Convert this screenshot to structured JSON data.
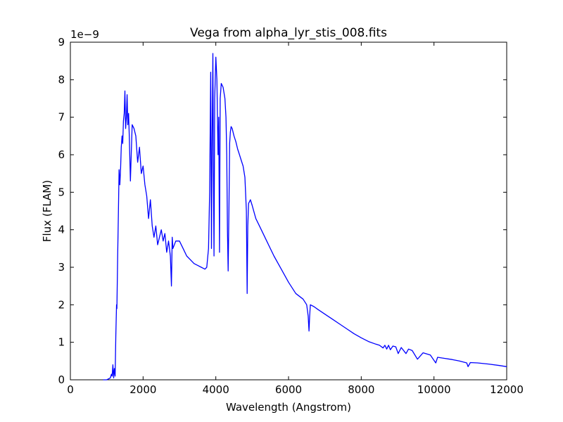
{
  "chart_data": {
    "type": "line",
    "title": "Vega from alpha_lyr_stis_008.fits",
    "xlabel": "Wavelength (Angstrom)",
    "ylabel": "Flux (FLAM)",
    "y_offset_label": "1e−9",
    "xlim": [
      0,
      12000
    ],
    "ylim": [
      0,
      9
    ],
    "x_ticks": [
      0,
      2000,
      4000,
      6000,
      8000,
      10000,
      12000
    ],
    "x_tick_labels": [
      "0",
      "2000",
      "4000",
      "6000",
      "8000",
      "10000",
      "12000"
    ],
    "y_ticks": [
      0,
      1,
      2,
      3,
      4,
      5,
      6,
      7,
      8,
      9
    ],
    "y_tick_labels": [
      "0",
      "1",
      "2",
      "3",
      "4",
      "5",
      "6",
      "7",
      "8",
      "9"
    ],
    "grid": false,
    "line_color": "#0000ff",
    "series": [
      {
        "x": [
          900,
          1000,
          1100,
          1130,
          1150,
          1170,
          1190,
          1210,
          1230,
          1250,
          1270,
          1280,
          1300,
          1320,
          1340,
          1360,
          1380,
          1400,
          1420,
          1440,
          1460,
          1480,
          1500,
          1520,
          1540,
          1560,
          1580,
          1600,
          1620,
          1650,
          1700,
          1750,
          1800,
          1850,
          1900,
          1950,
          2000,
          2050,
          2100,
          2150,
          2200,
          2250,
          2300,
          2350,
          2400,
          2450,
          2500,
          2550,
          2600,
          2650,
          2700,
          2750,
          2780,
          2800,
          2820,
          2900,
          3000,
          3100,
          3200,
          3300,
          3400,
          3500,
          3600,
          3700,
          3750,
          3800,
          3830,
          3860,
          3880,
          3900,
          3920,
          3935,
          3950,
          3970,
          4000,
          4030,
          4060,
          4080,
          4101,
          4120,
          4150,
          4200,
          4250,
          4280,
          4300,
          4320,
          4340,
          4360,
          4380,
          4400,
          4420,
          4450,
          4500,
          4550,
          4600,
          4650,
          4700,
          4750,
          4800,
          4840,
          4861,
          4880,
          4900,
          4950,
          5000,
          5100,
          5200,
          5400,
          5600,
          5800,
          6000,
          6200,
          6400,
          6500,
          6540,
          6563,
          6580,
          6600,
          6700,
          6800,
          7000,
          7200,
          7400,
          7600,
          7800,
          8000,
          8200,
          8400,
          8500,
          8600,
          8650,
          8700,
          8750,
          8800,
          8870,
          8950,
          9015,
          9100,
          9230,
          9300,
          9400,
          9546,
          9700,
          9900,
          10049,
          10100,
          10300,
          10500,
          10700,
          10900,
          10938,
          11000,
          11200,
          11500,
          11800,
          12000
        ],
        "y": [
          0.0,
          0.0,
          0.05,
          0.15,
          0.1,
          0.4,
          0.05,
          0.3,
          0.1,
          1.2,
          2.0,
          1.9,
          3.3,
          4.4,
          5.6,
          5.2,
          5.6,
          6.2,
          6.5,
          6.3,
          6.9,
          7.1,
          7.7,
          6.7,
          7.0,
          7.6,
          6.8,
          7.1,
          6.5,
          5.3,
          6.8,
          6.7,
          6.5,
          5.8,
          6.2,
          5.5,
          5.7,
          5.2,
          4.9,
          4.3,
          4.8,
          4.1,
          3.8,
          4.1,
          3.6,
          3.8,
          4.0,
          3.7,
          3.9,
          3.4,
          3.7,
          3.3,
          2.5,
          3.8,
          3.5,
          3.7,
          3.7,
          3.5,
          3.3,
          3.2,
          3.1,
          3.05,
          3.0,
          2.95,
          3.0,
          3.5,
          5.0,
          8.2,
          3.5,
          6.5,
          8.7,
          5.5,
          3.3,
          7.5,
          8.6,
          8.0,
          6.0,
          7.0,
          3.4,
          7.5,
          7.9,
          7.8,
          7.5,
          7.0,
          6.0,
          4.0,
          2.9,
          4.5,
          6.3,
          6.6,
          6.75,
          6.7,
          6.5,
          6.35,
          6.15,
          6.0,
          5.85,
          5.7,
          5.4,
          4.5,
          2.3,
          4.1,
          4.7,
          4.8,
          4.65,
          4.3,
          4.1,
          3.7,
          3.3,
          2.95,
          2.6,
          2.3,
          2.15,
          2.0,
          1.7,
          1.3,
          1.7,
          2.0,
          1.95,
          1.88,
          1.75,
          1.62,
          1.49,
          1.36,
          1.23,
          1.12,
          1.02,
          0.95,
          0.92,
          0.85,
          0.92,
          0.82,
          0.92,
          0.8,
          0.9,
          0.88,
          0.7,
          0.86,
          0.7,
          0.82,
          0.78,
          0.55,
          0.72,
          0.66,
          0.45,
          0.6,
          0.57,
          0.54,
          0.5,
          0.45,
          0.35,
          0.46,
          0.45,
          0.42,
          0.38,
          0.35
        ]
      }
    ]
  }
}
